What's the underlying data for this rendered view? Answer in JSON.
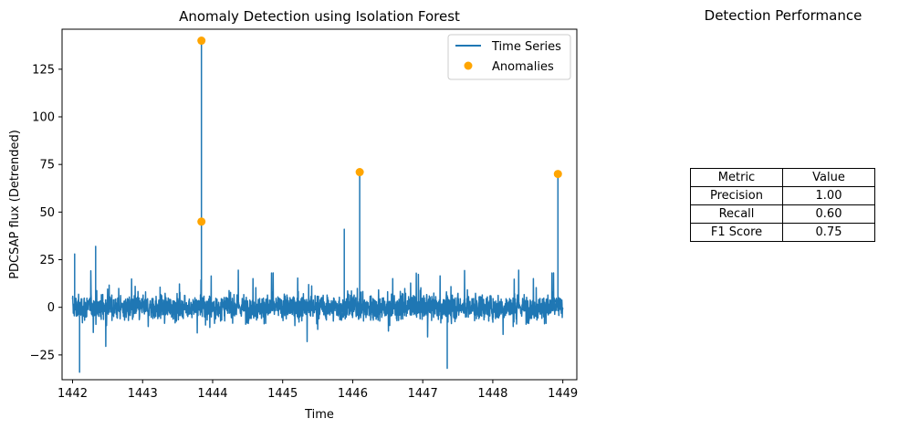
{
  "chart_data": [
    {
      "type": "line",
      "title": "Anomaly Detection using Isolation Forest",
      "xlabel": "Time",
      "ylabel": "PDCSAP flux (Detrended)",
      "xlim": [
        1441.85,
        1449.2
      ],
      "ylim": [
        -38,
        146
      ],
      "x_ticks": [
        1442,
        1443,
        1444,
        1445,
        1446,
        1447,
        1448,
        1449
      ],
      "y_ticks": [
        -25,
        0,
        25,
        50,
        75,
        100,
        125
      ],
      "grid": false,
      "legend": "top-right",
      "legend_entries": [
        "Time Series",
        "Anomalies"
      ],
      "series": [
        {
          "name": "Time Series",
          "color": "#1f77b4",
          "x_range": [
            1442.0,
            1449.0
          ],
          "typical_range": [
            -10,
            10
          ],
          "extremes": [
            {
              "x": 1442.1,
              "y": -34
            },
            {
              "x": 1442.03,
              "y": 28
            },
            {
              "x": 1442.33,
              "y": 32
            },
            {
              "x": 1443.84,
              "y": 140
            },
            {
              "x": 1443.84,
              "y": 45
            },
            {
              "x": 1445.88,
              "y": 41
            },
            {
              "x": 1446.1,
              "y": 71
            },
            {
              "x": 1447.35,
              "y": -32
            },
            {
              "x": 1448.93,
              "y": 70
            }
          ]
        }
      ],
      "anomalies": {
        "name": "Anomalies",
        "color": "#ffa500",
        "points": [
          {
            "x": 1443.84,
            "y": 140
          },
          {
            "x": 1443.84,
            "y": 45
          },
          {
            "x": 1446.1,
            "y": 71
          },
          {
            "x": 1448.93,
            "y": 70
          }
        ]
      }
    },
    {
      "type": "table",
      "title": "Detection Performance",
      "columns": [
        "Metric",
        "Value"
      ],
      "rows": [
        [
          "Precision",
          "1.00"
        ],
        [
          "Recall",
          "0.60"
        ],
        [
          "F1 Score",
          "0.75"
        ]
      ]
    }
  ]
}
